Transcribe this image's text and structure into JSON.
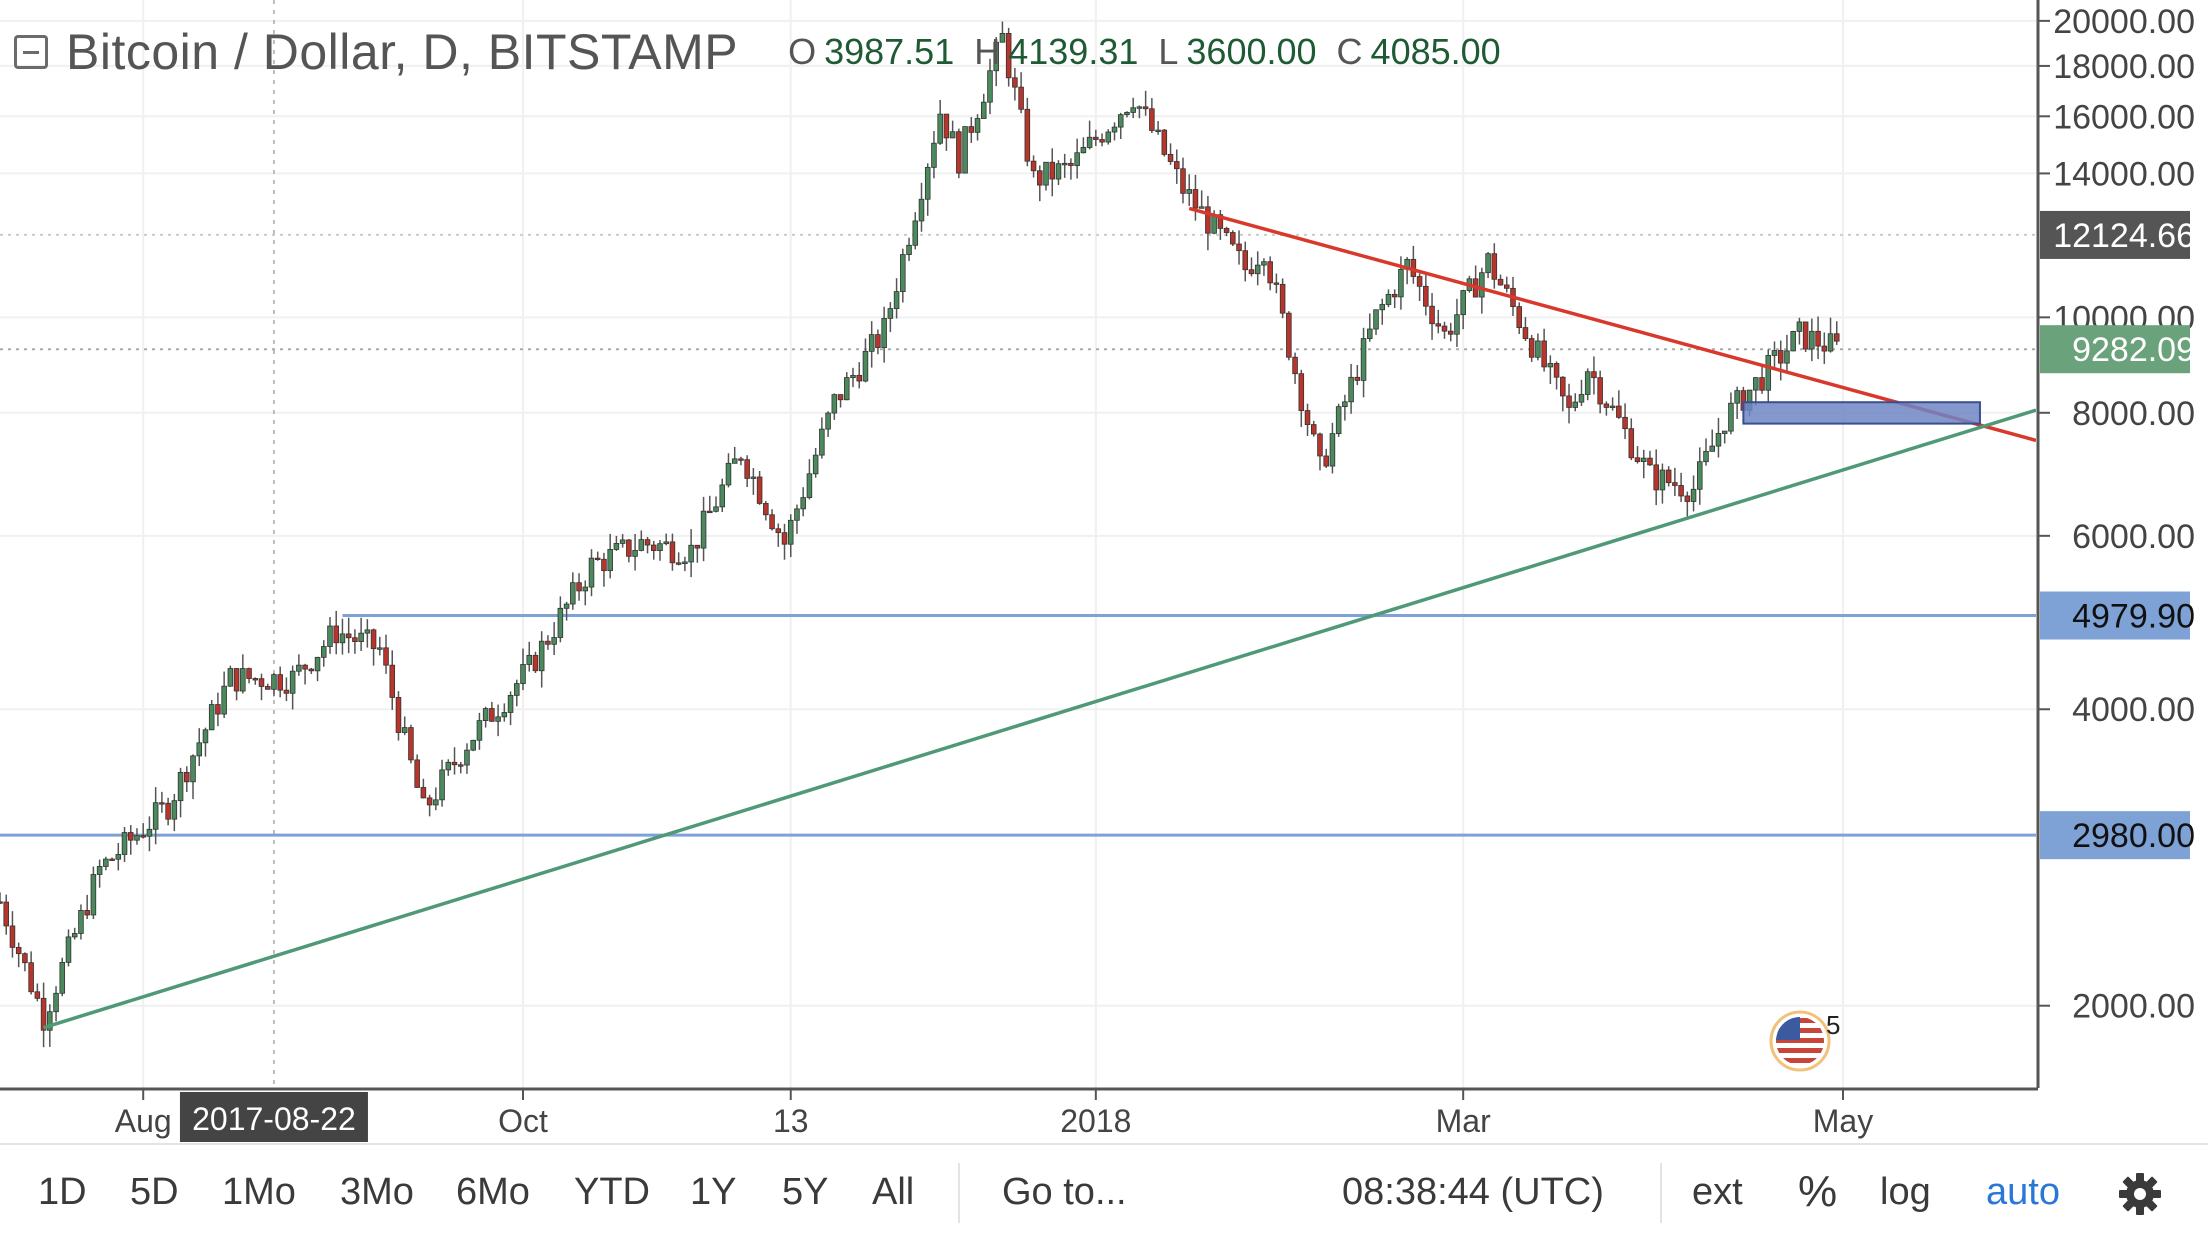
{
  "header": {
    "symbol_title": "Bitcoin / Dollar, D, BITSTAMP",
    "ohlc": [
      {
        "key": "O",
        "value": "3987.51"
      },
      {
        "key": "H",
        "value": "4139.31"
      },
      {
        "key": "L",
        "value": "3600.00"
      },
      {
        "key": "C",
        "value": "4085.00"
      }
    ]
  },
  "chart_data": {
    "type": "candlestick",
    "y_axis": {
      "ticks": [
        "20000.00",
        "18000.00",
        "16000.00",
        "14000.00",
        "10000.00",
        "8000.00",
        "6000.00",
        "4000.00",
        "2000.00"
      ],
      "tick_values": [
        20000,
        18000,
        16000,
        14000,
        10000,
        8000,
        6000,
        4000,
        2000
      ],
      "scale": "log",
      "ylim": [
        1650,
        21000
      ]
    },
    "price_labels": [
      {
        "text": "12124.66",
        "value": 12124.66,
        "color": "#555555"
      },
      {
        "text": "9282.09",
        "value": 9282.09,
        "color": "#6aa27c"
      },
      {
        "text": "4979.90",
        "value": 4979.9,
        "color": "#7ea1d6"
      },
      {
        "text": "2980.00",
        "value": 2980,
        "color": "#7ea1d6"
      }
    ],
    "x_axis": {
      "ticks": [
        {
          "label": "Aug",
          "date": "2017-08-01"
        },
        {
          "label": "Oct",
          "date": "2017-10-01"
        },
        {
          "label": "13",
          "date": "2017-11-13"
        },
        {
          "label": "2018",
          "date": "2018-01-01"
        },
        {
          "label": "Mar",
          "date": "2018-03-01"
        },
        {
          "label": "May",
          "date": "2018-05-01"
        }
      ],
      "crosshair_label": "2017-08-22",
      "xlim": [
        "2017-07-09",
        "2018-06-01"
      ]
    },
    "series_colors": {
      "up": "#4b8a5c",
      "down": "#b8352b",
      "wick": "#555555"
    },
    "anchors": [
      {
        "date": "2017-07-09",
        "price": 2550
      },
      {
        "date": "2017-07-16",
        "price": 1950
      },
      {
        "date": "2017-07-25",
        "price": 2750
      },
      {
        "date": "2017-08-05",
        "price": 3200
      },
      {
        "date": "2017-08-15",
        "price": 4300
      },
      {
        "date": "2017-08-25",
        "price": 4300
      },
      {
        "date": "2017-09-01",
        "price": 4800
      },
      {
        "date": "2017-09-08",
        "price": 4600
      },
      {
        "date": "2017-09-15",
        "price": 3150
      },
      {
        "date": "2017-09-22",
        "price": 3700
      },
      {
        "date": "2017-10-02",
        "price": 4400
      },
      {
        "date": "2017-10-12",
        "price": 5600
      },
      {
        "date": "2017-10-20",
        "price": 5900
      },
      {
        "date": "2017-10-28",
        "price": 5800
      },
      {
        "date": "2017-11-05",
        "price": 7300
      },
      {
        "date": "2017-11-12",
        "price": 5900
      },
      {
        "date": "2017-11-20",
        "price": 8200
      },
      {
        "date": "2017-11-28",
        "price": 9700
      },
      {
        "date": "2017-12-07",
        "price": 16200
      },
      {
        "date": "2017-12-10",
        "price": 14500
      },
      {
        "date": "2017-12-17",
        "price": 19200
      },
      {
        "date": "2017-12-22",
        "price": 13800
      },
      {
        "date": "2017-12-28",
        "price": 14200
      },
      {
        "date": "2018-01-07",
        "price": 16800
      },
      {
        "date": "2018-01-15",
        "price": 13500
      },
      {
        "date": "2018-01-25",
        "price": 11200
      },
      {
        "date": "2018-01-28",
        "price": 11800
      },
      {
        "date": "2018-02-06",
        "price": 7000
      },
      {
        "date": "2018-02-15",
        "price": 10000
      },
      {
        "date": "2018-02-20",
        "price": 11300
      },
      {
        "date": "2018-02-26",
        "price": 9600
      },
      {
        "date": "2018-03-05",
        "price": 11400
      },
      {
        "date": "2018-03-18",
        "price": 8000
      },
      {
        "date": "2018-03-21",
        "price": 8900
      },
      {
        "date": "2018-03-31",
        "price": 6900
      },
      {
        "date": "2018-04-07",
        "price": 6700
      },
      {
        "date": "2018-04-12",
        "price": 7900
      },
      {
        "date": "2018-04-24",
        "price": 9600
      },
      {
        "date": "2018-04-30",
        "price": 9300
      }
    ],
    "trendlines": [
      {
        "name": "resistance",
        "color": "#d9392c",
        "from": {
          "date": "2018-01-16",
          "price": 12900
        },
        "to": {
          "date": "2018-06-01",
          "price": 7500
        }
      },
      {
        "name": "support",
        "color": "#4f9977",
        "from": {
          "date": "2017-07-16",
          "price": 1900
        },
        "to": {
          "date": "2018-06-01",
          "price": 8050
        }
      }
    ],
    "horizontal_lines": [
      {
        "value": 4979.9,
        "from_date": "2017-09-02",
        "color": "#7ea1d6"
      },
      {
        "value": 2980,
        "from_date": "2017-07-09",
        "color": "#7ea1d6"
      }
    ],
    "dashed_lines": [
      {
        "value": 12124.66,
        "color": "#cccccc"
      },
      {
        "value": 9282.09,
        "color": "#aaaaaa"
      }
    ],
    "zone": {
      "from_date": "2018-04-15",
      "to_date": "2018-05-23",
      "low": 7800,
      "high": 8200,
      "color": "#6f86c4"
    }
  },
  "toolbar": {
    "ranges": [
      "1D",
      "5D",
      "1Mo",
      "3Mo",
      "6Mo",
      "YTD",
      "1Y",
      "5Y",
      "All"
    ],
    "goto_label": "Go to...",
    "clock": "08:38:44 (UTC)",
    "ext_label": "ext",
    "percent_label": "%",
    "log_label": "log",
    "auto_label": "auto",
    "settings_icon": "gear-icon"
  },
  "badge": {
    "number": "5",
    "icon": "us-flag-icon"
  }
}
